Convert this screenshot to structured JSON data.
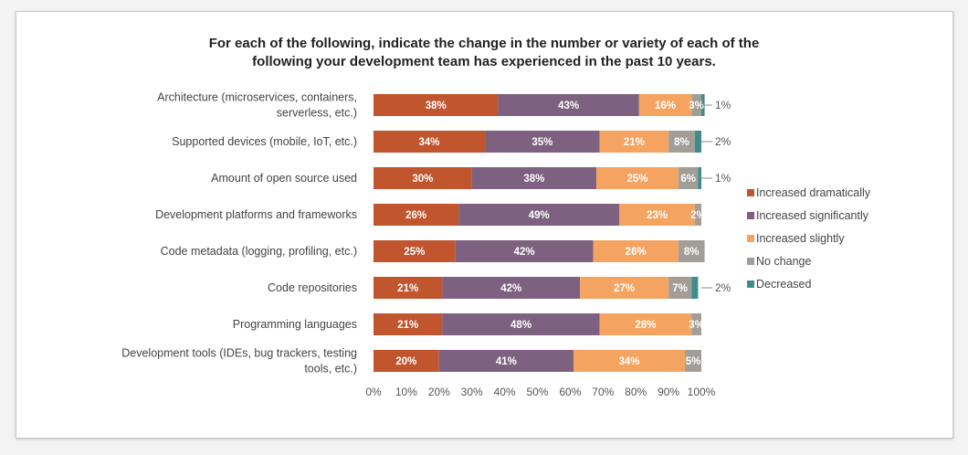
{
  "chart_data": {
    "type": "bar",
    "orientation": "horizontal-stacked-100",
    "title": [
      "For each of the following, indicate the change in the number or variety of each of the",
      "following your development team has experienced in the past 10 years."
    ],
    "categories": [
      [
        "Architecture (microservices, containers,",
        "serverless, etc.)"
      ],
      [
        "Supported devices (mobile, IoT, etc.)"
      ],
      [
        "Amount of open source used"
      ],
      [
        "Development platforms and frameworks"
      ],
      [
        "Code metadata (logging, profiling, etc.)"
      ],
      [
        "Code repositories"
      ],
      [
        "Programming languages"
      ],
      [
        "Development tools (IDEs, bug trackers, testing",
        "tools, etc.)"
      ]
    ],
    "series": [
      {
        "name": "Increased dramatically",
        "color": "#c0552e",
        "values": [
          38,
          34,
          30,
          26,
          25,
          21,
          21,
          20
        ]
      },
      {
        "name": "Increased significantly",
        "color": "#7e6180",
        "values": [
          43,
          35,
          38,
          49,
          42,
          42,
          48,
          41
        ]
      },
      {
        "name": "Increased slightly",
        "color": "#f4a460",
        "values": [
          16,
          21,
          25,
          23,
          26,
          27,
          28,
          34
        ]
      },
      {
        "name": "No change",
        "color": "#a29d97",
        "values": [
          3,
          8,
          6,
          2,
          8,
          7,
          3,
          5
        ]
      },
      {
        "name": "Decreased",
        "color": "#3e8d8c",
        "values": [
          1,
          2,
          1,
          0,
          0,
          2,
          0,
          0
        ]
      }
    ],
    "data_labels": [
      [
        "38%",
        "43%",
        "16%",
        "3%",
        ""
      ],
      [
        "34%",
        "35%",
        "21%",
        "8%",
        ""
      ],
      [
        "30%",
        "38%",
        "25%",
        "6%",
        ""
      ],
      [
        "26%",
        "49%",
        "23%",
        "2%",
        ""
      ],
      [
        "25%",
        "42%",
        "26%",
        "8%",
        ""
      ],
      [
        "21%",
        "42%",
        "27%",
        "7%",
        ""
      ],
      [
        "21%",
        "48%",
        "28%",
        "3%",
        ""
      ],
      [
        "20%",
        "41%",
        "34%",
        "5%",
        ""
      ]
    ],
    "callouts": [
      "1%",
      "2%",
      "1%",
      "",
      "",
      "2%",
      "",
      ""
    ],
    "x_ticks": [
      "0%",
      "10%",
      "20%",
      "30%",
      "40%",
      "50%",
      "60%",
      "70%",
      "80%",
      "90%",
      "100%"
    ],
    "xlim": [
      0,
      100
    ],
    "legend_position": "right",
    "grid": false
  }
}
